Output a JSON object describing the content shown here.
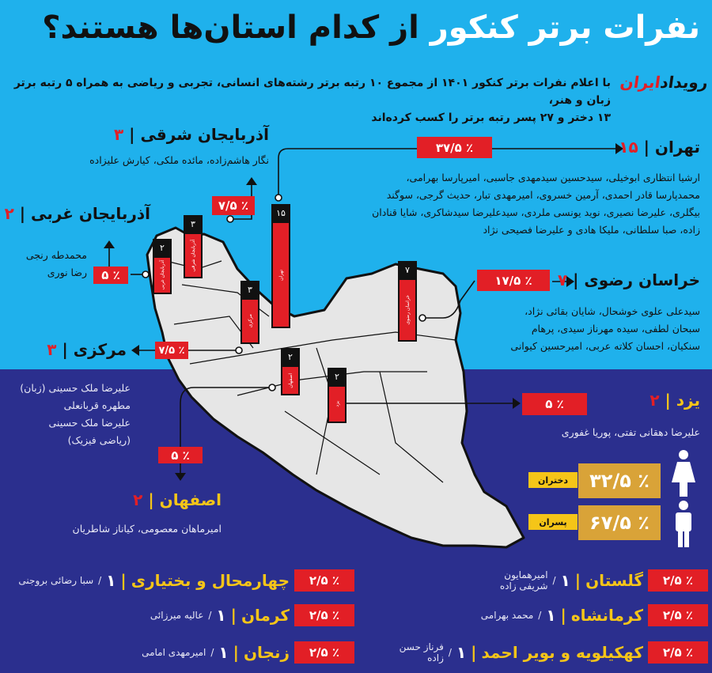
{
  "title": {
    "part_white": "نفرات برتر کنکور",
    "part_black": "از کدام استان‌ها هستند؟"
  },
  "subtitle": [
    "با اعلام نفرات برتر کنکور ۱۴۰۱ از مجموع ۱۰ رتبه برتر رشته‌های انسانی، تجربی و ریاضی به همراه ۵ رتبه برتر زبان و هنر،",
    "۱۳ دختر و ۲۷ پسر رتبه برتر را کسب کرده‌اند"
  ],
  "logo": {
    "part_black": "رویداد",
    "part_red": "ایران"
  },
  "colors": {
    "top_bg": "#1fb1ec",
    "bottom_bg": "#2b2f8e",
    "accent_red": "#e21f26",
    "gold": "#d9a338",
    "yellow": "#f5c518"
  },
  "separator": "|",
  "provinces": {
    "tehran": {
      "name": "تهران",
      "count": "۱۵",
      "percent": "٪ ۳۷/۵",
      "names": [
        "ارشیا انتظاری ابوخیلی، سیدحسین سیدمهدی جاسبی، امیرپارسا بهرامی،",
        "محمدپارسا قادر احمدی، آرمین خسروی، امیرمهدی تبار، حدیث گرجی، سوگند",
        "بیگلری، علیرضا نصیری، نوید یونسی ملردی، سیدعلیرضا سیدشاکری، شایا قنادان",
        "زاده، صبا سلطانی، ملیکا هادی و علیرضا فصیحی نژاد"
      ]
    },
    "azar_sharghi": {
      "name": "آذربایجان شرقی",
      "count": "۳",
      "percent": "٪ ۷/۵",
      "names": "نگار هاشم‌زاده، مائده ملکی، کیارش علیزاده"
    },
    "azar_gharbi": {
      "name": "آذربایجان غربی",
      "count": "۲",
      "percent": "٪ ۵",
      "names": [
        "محمدطه رنجی",
        "رضا نوری"
      ]
    },
    "khorasan": {
      "name": "خراسان رضوی",
      "count": "۷",
      "percent": "٪ ۱۷/۵",
      "names": [
        "سیدعلی علوی خوشحال، شایان بقائی نژاد،",
        "سبحان لطفی، سیده مهرناز سیدی، پرهام",
        "سنکیان، احسان کلاته عربی، امیرحسین کیوانی"
      ]
    },
    "markazi": {
      "name": "مرکزی",
      "count": "۳",
      "percent": "٪ ۷/۵",
      "names": [
        "علیرضا ملک حسینی (زبان)",
        "مطهره قربانعلی",
        "علیرضا ملک حسینی",
        "(ریاضی فیزیک)"
      ]
    },
    "isfahan": {
      "name": "اصفهان",
      "count": "۲",
      "percent": "٪ ۵",
      "names": "امیرماهان معصومی، کیاناز شاطریان"
    },
    "yazd": {
      "name": "یزد",
      "count": "۲",
      "percent": "٪ ۵",
      "names": "علیرضا دهقانی تفتی، پوریا غفوری"
    }
  },
  "map_bars": [
    {
      "label": "آذربایجان غربی",
      "count": "۲",
      "value": 2
    },
    {
      "label": "آذربایجان شرقی",
      "count": "۳",
      "value": 3
    },
    {
      "label": "مرکزی",
      "count": "۳",
      "value": 3
    },
    {
      "label": "تهران",
      "count": "۱۵",
      "value": 15
    },
    {
      "label": "خراسان رضوی",
      "count": "۷",
      "value": 7
    },
    {
      "label": "اصفهان",
      "count": "۲",
      "value": 2
    },
    {
      "label": "یزد",
      "count": "۲",
      "value": 2
    }
  ],
  "gender": {
    "female": {
      "label": "دختران",
      "percent": "٪ ۳۲/۵",
      "icon": "female-icon"
    },
    "male": {
      "label": "پسران",
      "percent": "٪ ۶۷/۵",
      "icon": "male-icon"
    }
  },
  "single_rank_rows": {
    "left": [
      {
        "province": "چهارمحال و بختیاری",
        "count": "۱",
        "sep": "/",
        "name": "سبا رضائی بروجنی",
        "percent": "٪ ۲/۵"
      },
      {
        "province": "کرمان",
        "count": "۱",
        "sep": "/",
        "name": "عالیه میرزائی",
        "percent": "٪ ۲/۵"
      },
      {
        "province": "زنجان",
        "count": "۱",
        "sep": "/",
        "name": "امیرمهدی امامی",
        "percent": "٪ ۲/۵"
      }
    ],
    "right": [
      {
        "province": "گلستان",
        "count": "۱",
        "sep": "/",
        "name": "امیرهمایون شریفی زاده",
        "percent": "٪ ۲/۵"
      },
      {
        "province": "کرمانشاه",
        "count": "۱",
        "sep": "/",
        "name": "محمد بهرامی",
        "percent": "٪ ۲/۵"
      },
      {
        "province": "کهکیلویه و بویر احمد",
        "count": "۱",
        "sep": "/",
        "name": "فرناز حسن زاده",
        "percent": "٪ ۲/۵"
      }
    ]
  }
}
